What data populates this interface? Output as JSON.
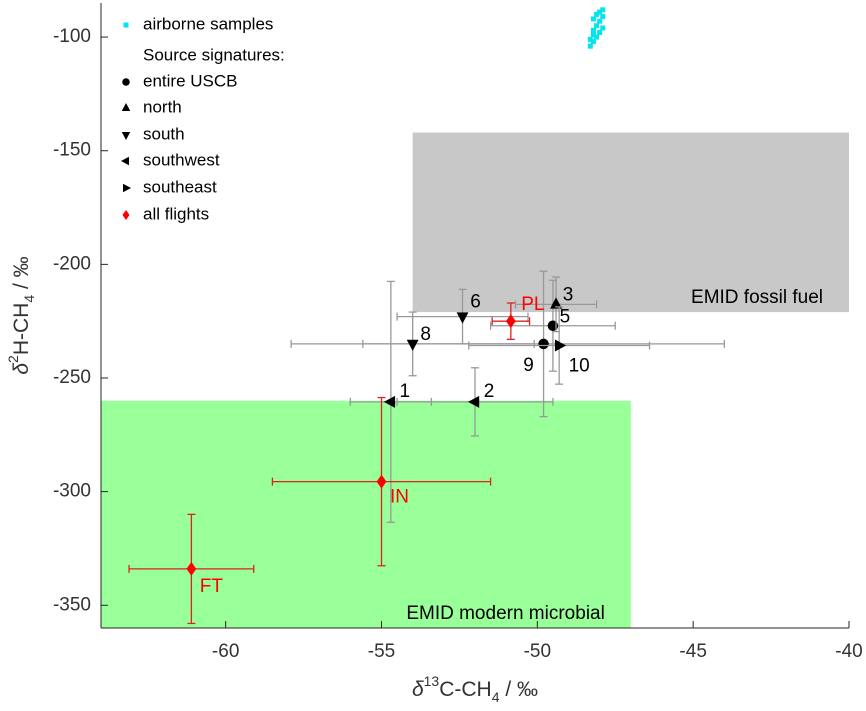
{
  "chart_data": {
    "type": "scatter",
    "xlabel": [
      "δ",
      "13",
      "C-CH",
      "4",
      " / ‰"
    ],
    "ylabel": [
      "δ",
      "2",
      "H-CH",
      "4",
      " / ‰"
    ],
    "xlim": [
      -64,
      -40
    ],
    "ylim": [
      -360,
      -85
    ],
    "xticks": [
      -60,
      -55,
      -50,
      -45,
      -40
    ],
    "yticks": [
      -100,
      -150,
      -200,
      -250,
      -300,
      -350
    ],
    "legend_header": "Source signatures:",
    "regions": [
      {
        "label": "EMID fossil fuel",
        "x": [
          -54,
          -40
        ],
        "y": [
          -221,
          -142
        ],
        "color": "#c8c8c8"
      },
      {
        "label": "EMID modern microbial",
        "x": [
          -64,
          -47
        ],
        "y": [
          -360,
          -260
        ],
        "color": "#99ff99"
      }
    ],
    "series": [
      {
        "name": "airborne samples",
        "marker": "square",
        "color": "#00e5ee",
        "x": [
          -48.3,
          -48.2,
          -48.1,
          -48.0,
          -47.9,
          -48.2,
          -48.1,
          -48.0,
          -47.9,
          -48.2,
          -48.1,
          -48.0,
          -47.9,
          -48.3,
          -48.2
        ],
        "y": [
          -104,
          -102,
          -100,
          -98,
          -96,
          -97,
          -95,
          -93,
          -91,
          -92,
          -90,
          -89,
          -88,
          -101,
          -99
        ]
      },
      {
        "name": "entire USCB",
        "marker": "circle",
        "color": "#000000",
        "error_color": "#999999",
        "x": [
          -49.5,
          -49.8
        ],
        "y": [
          -227,
          -235
        ],
        "xerr": [
          2,
          5.8
        ],
        "yerr": [
          20,
          32
        ],
        "labels": [
          "5",
          "9"
        ]
      },
      {
        "name": "north",
        "marker": "triangle-up",
        "color": "#000000",
        "error_color": "#999999",
        "x": [
          -49.4
        ],
        "y": [
          -217.6
        ],
        "xerr": [
          1.3
        ],
        "yerr": [
          12
        ],
        "labels": [
          "3"
        ]
      },
      {
        "name": "south",
        "marker": "triangle-down",
        "color": "#000000",
        "error_color": "#999999",
        "x": [
          -52.4,
          -54
        ],
        "y": [
          -223,
          -235
        ],
        "xerr": [
          2.1,
          3.9
        ],
        "yerr": [
          12,
          14
        ],
        "labels": [
          "6",
          "8"
        ]
      },
      {
        "name": "southwest",
        "marker": "triangle-left",
        "color": "#000000",
        "error_color": "#999999",
        "x": [
          -54.7,
          -52
        ],
        "y": [
          -260.5,
          -260.5
        ],
        "xerr": [
          1.3,
          2.5
        ],
        "yerr": [
          53,
          15
        ],
        "labels": [
          "1",
          "2"
        ]
      },
      {
        "name": "southeast",
        "marker": "triangle-right",
        "color": "#000000",
        "error_color": "#999999",
        "x": [
          -49.3
        ],
        "y": [
          -235.7
        ],
        "xerr": [
          2.9
        ],
        "yerr": [
          17
        ],
        "labels": [
          "10"
        ]
      },
      {
        "name": "all flights",
        "marker": "diamond",
        "color": "#ff0000",
        "error_color": "#dd2222",
        "x": [
          -50.85,
          -55,
          -61.1
        ],
        "y": [
          -225,
          -295.6,
          -334
        ],
        "xerr": [
          0.6,
          3.5,
          2
        ],
        "yerr": [
          8,
          37,
          24
        ],
        "labels": [
          "PL",
          "IN",
          "FT"
        ]
      }
    ]
  }
}
